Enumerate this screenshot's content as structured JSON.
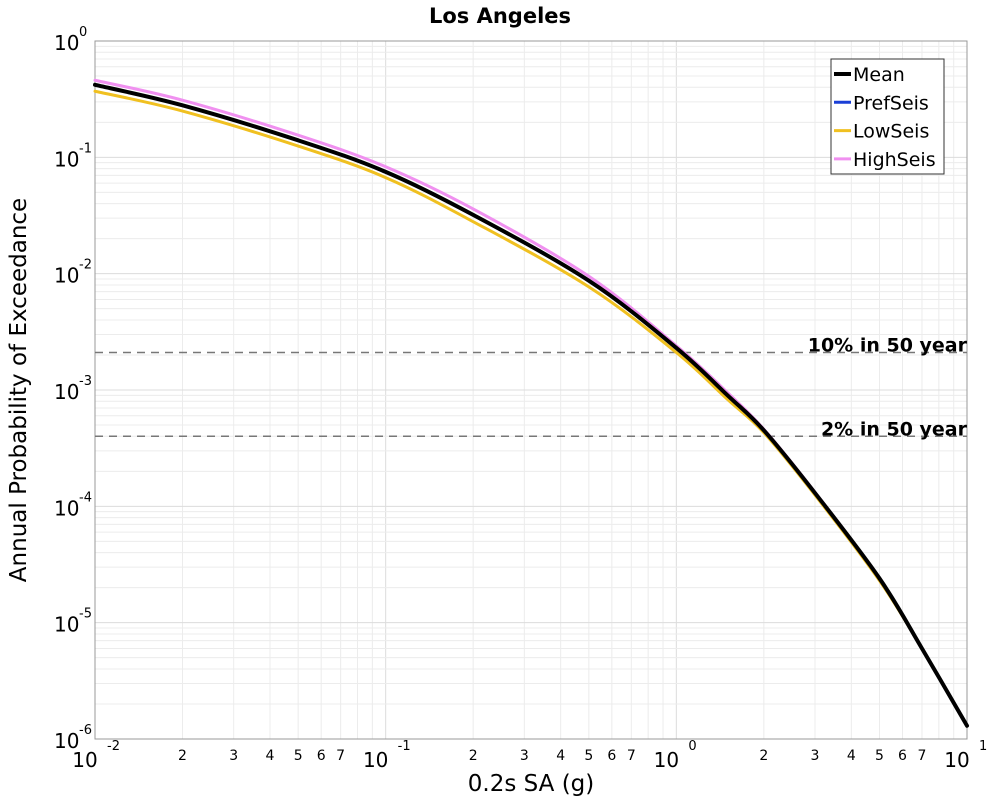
{
  "chart_data": {
    "type": "line",
    "title": "Los Angeles",
    "xlabel": "0.2s SA (g)",
    "ylabel": "Annual Probability of Exceedance",
    "x_scale": "log",
    "y_scale": "log",
    "xlim": [
      0.01,
      10
    ],
    "ylim": [
      1e-06,
      1
    ],
    "grid": true,
    "legend_position": "top-right",
    "x_major_ticks": [
      {
        "base": "10",
        "exp": "-2"
      },
      {
        "base": "10",
        "exp": "-1"
      },
      {
        "base": "10",
        "exp": "0"
      },
      {
        "base": "10",
        "exp": "1"
      }
    ],
    "y_major_ticks": [
      {
        "base": "10",
        "exp": "0"
      },
      {
        "base": "10",
        "exp": "-1"
      },
      {
        "base": "10",
        "exp": "-2"
      },
      {
        "base": "10",
        "exp": "-3"
      },
      {
        "base": "10",
        "exp": "-4"
      },
      {
        "base": "10",
        "exp": "-5"
      },
      {
        "base": "10",
        "exp": "-6"
      }
    ],
    "x_minor_tick_labels": [
      "2",
      "3",
      "4",
      "5",
      "6",
      "7"
    ],
    "series": [
      {
        "name": "Mean",
        "color": "#000000",
        "x": [
          0.01,
          0.02,
          0.05,
          0.1,
          0.2,
          0.5,
          1,
          1.5,
          2,
          3,
          5,
          7,
          10
        ],
        "y": [
          0.42,
          0.28,
          0.14,
          0.075,
          0.032,
          0.0087,
          0.0023,
          0.0009,
          0.00045,
          0.00013,
          2.4e-05,
          6e-06,
          1.3e-06
        ]
      },
      {
        "name": "PrefSeis",
        "color": "#1a3fd6",
        "x": [
          0.01,
          0.02,
          0.05,
          0.1,
          0.2,
          0.5,
          1,
          1.5,
          2,
          3,
          5,
          7,
          10
        ],
        "y": [
          0.42,
          0.28,
          0.14,
          0.075,
          0.032,
          0.0087,
          0.0023,
          0.0009,
          0.00045,
          0.00013,
          2.4e-05,
          6e-06,
          1.3e-06
        ]
      },
      {
        "name": "LowSeis",
        "color": "#f0c020",
        "x": [
          0.01,
          0.02,
          0.05,
          0.1,
          0.2,
          0.5,
          1,
          1.5,
          2,
          3,
          5,
          7,
          10
        ],
        "y": [
          0.37,
          0.25,
          0.125,
          0.067,
          0.028,
          0.0077,
          0.0021,
          0.00083,
          0.00043,
          0.000125,
          2.3e-05,
          6e-06,
          1.3e-06
        ]
      },
      {
        "name": "HighSeis",
        "color": "#f090f0",
        "x": [
          0.01,
          0.02,
          0.05,
          0.1,
          0.2,
          0.5,
          1,
          1.5,
          2,
          3,
          5,
          7,
          10
        ],
        "y": [
          0.46,
          0.31,
          0.155,
          0.083,
          0.036,
          0.0095,
          0.0024,
          0.00095,
          0.00046,
          0.000132,
          2.4e-05,
          6e-06,
          1.3e-06
        ]
      }
    ],
    "reference_lines": [
      {
        "label": "10% in 50 year",
        "y": 0.0021,
        "color": "#777777"
      },
      {
        "label": "2% in 50 year",
        "y": 0.0004,
        "color": "#777777"
      }
    ]
  }
}
